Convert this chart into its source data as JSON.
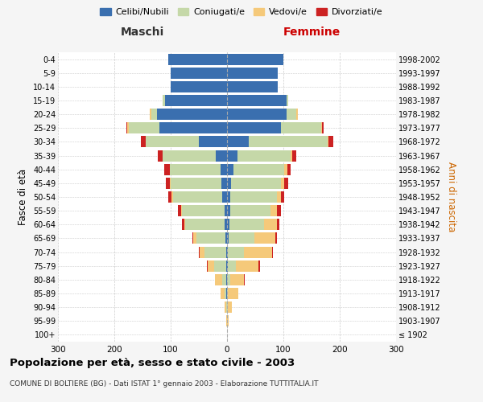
{
  "age_groups": [
    "100+",
    "95-99",
    "90-94",
    "85-89",
    "80-84",
    "75-79",
    "70-74",
    "65-69",
    "60-64",
    "55-59",
    "50-54",
    "45-49",
    "40-44",
    "35-39",
    "30-34",
    "25-29",
    "20-24",
    "15-19",
    "10-14",
    "5-9",
    "0-4"
  ],
  "birth_years": [
    "≤ 1902",
    "1903-1907",
    "1908-1912",
    "1913-1917",
    "1918-1922",
    "1923-1927",
    "1928-1932",
    "1933-1937",
    "1938-1942",
    "1943-1947",
    "1948-1952",
    "1953-1957",
    "1958-1962",
    "1963-1967",
    "1968-1972",
    "1973-1977",
    "1978-1982",
    "1983-1987",
    "1988-1992",
    "1993-1997",
    "1998-2002"
  ],
  "male_celibe": [
    0,
    0,
    0,
    1,
    1,
    1,
    2,
    3,
    4,
    5,
    8,
    10,
    12,
    20,
    50,
    120,
    125,
    110,
    100,
    100,
    105
  ],
  "male_coniug": [
    0,
    0,
    2,
    4,
    8,
    22,
    38,
    52,
    70,
    75,
    88,
    90,
    90,
    95,
    95,
    55,
    10,
    4,
    0,
    0,
    0
  ],
  "male_vedovo": [
    0,
    1,
    3,
    6,
    12,
    12,
    8,
    5,
    2,
    2,
    2,
    1,
    0,
    0,
    0,
    2,
    2,
    0,
    0,
    0,
    0
  ],
  "male_divorz": [
    0,
    0,
    0,
    0,
    0,
    1,
    2,
    2,
    4,
    5,
    6,
    8,
    10,
    8,
    8,
    2,
    0,
    0,
    0,
    0,
    0
  ],
  "female_nubile": [
    0,
    0,
    0,
    0,
    0,
    1,
    2,
    3,
    4,
    5,
    6,
    7,
    12,
    18,
    38,
    95,
    105,
    105,
    90,
    90,
    100
  ],
  "female_coniug": [
    0,
    0,
    1,
    2,
    5,
    15,
    28,
    45,
    62,
    72,
    82,
    88,
    90,
    95,
    140,
    72,
    18,
    4,
    0,
    0,
    0
  ],
  "female_vedova": [
    0,
    3,
    8,
    18,
    25,
    40,
    50,
    38,
    22,
    12,
    8,
    6,
    5,
    2,
    2,
    2,
    2,
    0,
    0,
    0,
    0
  ],
  "female_divorz": [
    0,
    0,
    0,
    0,
    1,
    2,
    2,
    3,
    5,
    6,
    6,
    7,
    6,
    8,
    8,
    3,
    1,
    0,
    0,
    0,
    0
  ],
  "colors": {
    "celibe": "#3a6faf",
    "coniug": "#c5d8a8",
    "vedovo": "#f5c97a",
    "divorz": "#cc2222"
  },
  "xlim": 300,
  "title": "Popolazione per età, sesso e stato civile - 2003",
  "subtitle": "COMUNE DI BOLTIERE (BG) - Dati ISTAT 1° gennaio 2003 - Elaborazione TUTTITALIA.IT",
  "ylabel_left": "Fasce di età",
  "ylabel_right": "Anni di nascita",
  "xlabel_left": "Maschi",
  "xlabel_right": "Femmine",
  "bg_color": "#f5f5f5",
  "plot_bg": "#ffffff"
}
